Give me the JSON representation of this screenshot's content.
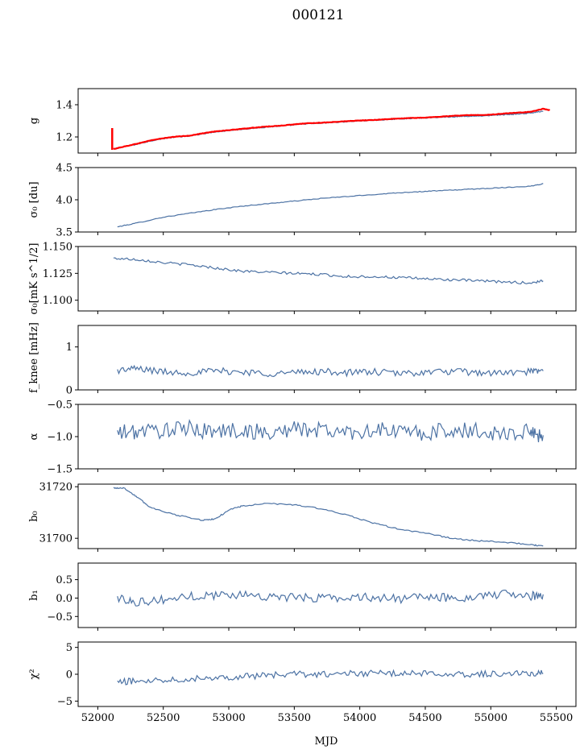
{
  "title": "000121",
  "colors": {
    "series": "#4c72a4",
    "overlay": "#ff0000",
    "axes": "#000000",
    "background": "#ffffff"
  },
  "chart_data": {
    "type": "line",
    "shared_x": true,
    "xlabel": "MJD",
    "xlim": [
      51850,
      55650
    ],
    "xticks": [
      52000,
      52500,
      53000,
      53500,
      54000,
      54500,
      55000,
      55500
    ],
    "xtick_labels": [
      "52000",
      "52500",
      "53000",
      "53500",
      "54000",
      "54500",
      "55000",
      "55500"
    ],
    "grid": false,
    "panels": [
      {
        "id": "g",
        "ylabel": "g",
        "ylim": [
          1.1,
          1.5
        ],
        "yticks": [
          1.2,
          1.4
        ],
        "ytick_labels": [
          "1.2",
          "1.4"
        ],
        "series": [
          {
            "color": "#4c72a4",
            "x": [
              52120,
              52200,
              52300,
              52400,
              52500,
              52600,
              52700,
              52800,
              52900,
              53000,
              53100,
              53200,
              53300,
              53400,
              53500,
              53600,
              53700,
              53800,
              53900,
              54000,
              54100,
              54200,
              54300,
              54400,
              54500,
              54600,
              54700,
              54800,
              54900,
              55000,
              55100,
              55200,
              55300,
              55400
            ],
            "y": [
              1.125,
              1.14,
              1.155,
              1.175,
              1.19,
              1.2,
              1.205,
              1.22,
              1.232,
              1.24,
              1.248,
              1.255,
              1.262,
              1.268,
              1.275,
              1.282,
              1.285,
              1.29,
              1.295,
              1.3,
              1.303,
              1.308,
              1.312,
              1.316,
              1.318,
              1.322,
              1.325,
              1.328,
              1.33,
              1.333,
              1.338,
              1.342,
              1.348,
              1.36
            ]
          },
          {
            "color": "#ff0000",
            "x": [
              52120,
              52200,
              52300,
              52400,
              52500,
              52600,
              52700,
              52800,
              52900,
              53000,
              53100,
              53200,
              53300,
              53400,
              53500,
              53600,
              53700,
              53800,
              53900,
              54000,
              54100,
              54200,
              54300,
              54400,
              54500,
              54600,
              54700,
              54800,
              54900,
              55000,
              55100,
              55200,
              55300,
              55400,
              55450
            ],
            "y": [
              1.125,
              1.14,
              1.158,
              1.178,
              1.192,
              1.202,
              1.208,
              1.222,
              1.235,
              1.242,
              1.25,
              1.258,
              1.265,
              1.27,
              1.278,
              1.285,
              1.288,
              1.292,
              1.298,
              1.302,
              1.305,
              1.31,
              1.314,
              1.318,
              1.32,
              1.325,
              1.33,
              1.335,
              1.336,
              1.338,
              1.345,
              1.35,
              1.355,
              1.375,
              1.365
            ],
            "spike": {
              "x": 52110,
              "y_from": 1.12,
              "y_to": 1.255
            }
          }
        ]
      },
      {
        "id": "sigma0",
        "ylabel": "σ₀ [du]",
        "ylim": [
          3.5,
          4.5
        ],
        "yticks": [
          3.5,
          4.0,
          4.5
        ],
        "ytick_labels": [
          "3.5",
          "4.0",
          "4.5"
        ],
        "series": [
          {
            "color": "#4c72a4",
            "x": [
              52150,
              52300,
              52500,
              52700,
              52900,
              53100,
              53300,
              53500,
              53700,
              53900,
              54100,
              54300,
              54500,
              54700,
              54900,
              55100,
              55300,
              55400
            ],
            "y": [
              3.58,
              3.64,
              3.73,
              3.79,
              3.85,
              3.9,
              3.94,
              3.98,
              4.02,
              4.05,
              4.08,
              4.11,
              4.13,
              4.15,
              4.17,
              4.19,
              4.21,
              4.25
            ]
          }
        ]
      },
      {
        "id": "sigma0-units",
        "ylabel": "σ₀[mK s^1/2]",
        "ylim": [
          1.09,
          1.15
        ],
        "yticks": [
          1.1,
          1.125,
          1.15
        ],
        "ytick_labels": [
          "1.100",
          "1.125",
          "1.150"
        ],
        "series": [
          {
            "color": "#4c72a4",
            "x": [
              52120,
              52300,
              52500,
              52700,
              52900,
              53100,
              53300,
              53500,
              53700,
              53900,
              54100,
              54300,
              54500,
              54700,
              54900,
              55100,
              55300,
              55400
            ],
            "y": [
              1.139,
              1.138,
              1.135,
              1.133,
              1.13,
              1.127,
              1.126,
              1.125,
              1.124,
              1.122,
              1.122,
              1.121,
              1.12,
              1.119,
              1.118,
              1.117,
              1.116,
              1.118
            ]
          }
        ]
      },
      {
        "id": "fknee",
        "ylabel": "f_knee [mHz]",
        "ylim": [
          0,
          1.5
        ],
        "yticks": [
          0,
          1
        ],
        "ytick_labels": [
          "0",
          "1"
        ],
        "series": [
          {
            "color": "#4c72a4",
            "x": [
              52150,
              52300,
              52500,
              52700,
              52900,
              53100,
              53300,
              53500,
              53700,
              53900,
              54100,
              54300,
              54500,
              54700,
              54900,
              55100,
              55300,
              55400
            ],
            "y": [
              0.45,
              0.5,
              0.42,
              0.4,
              0.44,
              0.42,
              0.38,
              0.4,
              0.43,
              0.4,
              0.42,
              0.38,
              0.41,
              0.43,
              0.4,
              0.39,
              0.42,
              0.44
            ]
          }
        ]
      },
      {
        "id": "alpha",
        "ylabel": "α",
        "ylim": [
          -1.5,
          -0.5
        ],
        "yticks": [
          -1.5,
          -1.0,
          -0.5
        ],
        "ytick_labels": [
          "−1.5",
          "−1.0",
          "−0.5"
        ],
        "series": [
          {
            "color": "#4c72a4",
            "x": [
              52150,
              52300,
              52500,
              52700,
              52900,
              53100,
              53300,
              53500,
              53700,
              53900,
              54100,
              54300,
              54500,
              54700,
              54900,
              55100,
              55300,
              55400
            ],
            "y": [
              -0.95,
              -0.92,
              -0.9,
              -0.88,
              -0.92,
              -0.9,
              -0.95,
              -0.88,
              -0.9,
              -0.93,
              -0.9,
              -0.92,
              -0.95,
              -0.9,
              -0.92,
              -0.95,
              -0.93,
              -0.98
            ]
          }
        ]
      },
      {
        "id": "b0",
        "ylabel": "b₀",
        "ylim": [
          31696,
          31721
        ],
        "yticks": [
          31700,
          31720
        ],
        "ytick_labels": [
          "31700",
          "31720"
        ],
        "series": [
          {
            "color": "#4c72a4",
            "x": [
              52120,
              52200,
              52300,
              52400,
              52600,
              52800,
              52900,
              53000,
              53100,
              53300,
              53500,
              53700,
              53900,
              54100,
              54300,
              54500,
              54700,
              54900,
              55100,
              55300,
              55400
            ],
            "y": [
              31719.5,
              31719.5,
              31716,
              31712,
              31709,
              31707,
              31707.5,
              31711,
              31712.5,
              31713.5,
              31713,
              31711.5,
              31709,
              31706,
              31703.5,
              31702,
              31700,
              31699,
              31698.5,
              31697.5,
              31697
            ]
          }
        ]
      },
      {
        "id": "b1",
        "ylabel": "b₁",
        "ylim": [
          -0.8,
          0.95
        ],
        "yticks": [
          -0.5,
          0.0,
          0.5
        ],
        "ytick_labels": [
          "−0.5",
          "0.0",
          "0.5"
        ],
        "series": [
          {
            "color": "#4c72a4",
            "x": [
              52150,
              52300,
              52500,
              52700,
              52900,
              53100,
              53300,
              53500,
              53700,
              53900,
              54100,
              54300,
              54500,
              54700,
              54900,
              55100,
              55300,
              55400
            ],
            "y": [
              0.0,
              -0.1,
              -0.05,
              0.05,
              0.08,
              0.1,
              0.05,
              0.0,
              0.02,
              0.0,
              0.03,
              -0.02,
              0.02,
              0.0,
              0.05,
              0.1,
              0.05,
              0.1
            ]
          }
        ]
      },
      {
        "id": "chi2",
        "ylabel": "χ²",
        "ylim": [
          -6,
          6
        ],
        "yticks": [
          -5,
          0,
          5
        ],
        "ytick_labels": [
          "−5",
          "0",
          "5"
        ],
        "series": [
          {
            "color": "#4c72a4",
            "x": [
              52150,
              52300,
              52500,
              52700,
              52900,
              53100,
              53300,
              53500,
              53700,
              53900,
              54100,
              54300,
              54500,
              54700,
              54900,
              55100,
              55300,
              55400
            ],
            "y": [
              -1.5,
              -1.2,
              -1.0,
              -0.8,
              -0.6,
              -0.4,
              -0.2,
              0.0,
              0.0,
              0.1,
              0.2,
              0.1,
              0.2,
              0.1,
              0.0,
              0.2,
              0.1,
              0.2
            ]
          }
        ]
      }
    ]
  }
}
